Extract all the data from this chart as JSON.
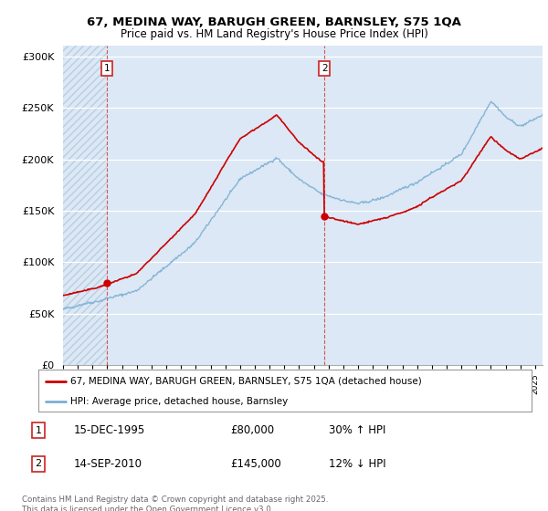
{
  "title": "67, MEDINA WAY, BARUGH GREEN, BARNSLEY, S75 1QA",
  "subtitle": "Price paid vs. HM Land Registry's House Price Index (HPI)",
  "ylim": [
    0,
    310000
  ],
  "yticks": [
    0,
    50000,
    100000,
    150000,
    200000,
    250000,
    300000
  ],
  "ytick_labels": [
    "£0",
    "£50K",
    "£100K",
    "£150K",
    "£200K",
    "£250K",
    "£300K"
  ],
  "sale1_date_num": 1995.96,
  "sale1_price": 80000,
  "sale1_label": "15-DEC-1995",
  "sale1_price_str": "£80,000",
  "sale1_hpi": "30% ↑ HPI",
  "sale2_date_num": 2010.71,
  "sale2_price": 145000,
  "sale2_label": "14-SEP-2010",
  "sale2_price_str": "£145,000",
  "sale2_hpi": "12% ↓ HPI",
  "hpi_line_color": "#7bafd4",
  "price_line_color": "#cc0000",
  "sale_dot_color": "#cc0000",
  "plot_bg_color": "#dce8f5",
  "hatch_color": "#b8cfe0",
  "legend_line1": "67, MEDINA WAY, BARUGH GREEN, BARNSLEY, S75 1QA (detached house)",
  "legend_line2": "HPI: Average price, detached house, Barnsley",
  "footer": "Contains HM Land Registry data © Crown copyright and database right 2025.\nThis data is licensed under the Open Government Licence v3.0.",
  "xmin": 1993.0,
  "xmax": 2025.5
}
